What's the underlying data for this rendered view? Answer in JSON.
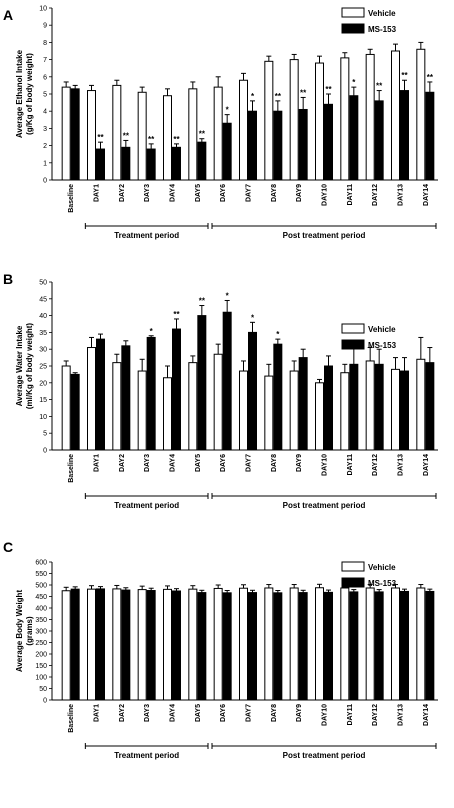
{
  "chart_data": [
    {
      "type": "bar",
      "panel_label": "A",
      "ylabel": "Average Ethanol Intake (g/Kg of body weight)",
      "ylim": [
        0,
        10
      ],
      "yticks": [
        0,
        1,
        2,
        3,
        4,
        5,
        6,
        7,
        8,
        9,
        10
      ],
      "categories": [
        "Baseline",
        "DAY1",
        "DAY2",
        "DAY3",
        "DAY4",
        "DAY5",
        "DAY6",
        "DAY7",
        "DAY8",
        "DAY9",
        "DAY10",
        "DAY11",
        "DAY12",
        "DAY13",
        "DAY14"
      ],
      "legend_position": "top-right",
      "series": [
        {
          "name": "Vehicle",
          "color": "#ffffff",
          "values": [
            5.4,
            5.2,
            5.5,
            5.1,
            4.9,
            5.3,
            5.4,
            5.8,
            6.9,
            7.0,
            6.8,
            7.1,
            7.3,
            7.5,
            7.6
          ],
          "errors": [
            0.3,
            0.3,
            0.3,
            0.3,
            0.4,
            0.4,
            0.6,
            0.4,
            0.3,
            0.3,
            0.4,
            0.3,
            0.3,
            0.4,
            0.4
          ],
          "stars": [
            "",
            "",
            "",
            "",
            "",
            "",
            "",
            "",
            "",
            "",
            "",
            "",
            "",
            "",
            ""
          ]
        },
        {
          "name": "MS-153",
          "color": "#000000",
          "values": [
            5.3,
            1.8,
            1.9,
            1.8,
            1.9,
            2.2,
            3.3,
            4.0,
            4.0,
            4.1,
            4.4,
            4.9,
            4.6,
            5.2,
            5.1
          ],
          "errors": [
            0.2,
            0.4,
            0.4,
            0.3,
            0.2,
            0.2,
            0.5,
            0.6,
            0.6,
            0.7,
            0.6,
            0.5,
            0.6,
            0.6,
            0.6
          ],
          "stars": [
            "",
            "**",
            "**",
            "**",
            "**",
            "**",
            "*",
            "*",
            "**",
            "**",
            "**",
            "*",
            "**",
            "**",
            "**"
          ]
        }
      ],
      "periods": [
        {
          "label": "Treatment period",
          "from": 1,
          "to": 5
        },
        {
          "label": "Post treatment period",
          "from": 6,
          "to": 14
        }
      ]
    },
    {
      "type": "bar",
      "panel_label": "B",
      "ylabel": "Average Water Intake (ml/Kg of body weight)",
      "ylim": [
        0,
        50
      ],
      "yticks": [
        0,
        5,
        10,
        15,
        20,
        25,
        30,
        35,
        40,
        45,
        50
      ],
      "categories": [
        "Baseline",
        "DAY1",
        "DAY2",
        "DAY3",
        "DAY4",
        "DAY5",
        "DAY6",
        "DAY7",
        "DAY8",
        "DAY9",
        "DAY10",
        "DAY11",
        "DAY12",
        "DAY13",
        "DAY14"
      ],
      "legend_position": "top-right",
      "series": [
        {
          "name": "Vehicle",
          "color": "#ffffff",
          "values": [
            25,
            30.5,
            26,
            23.5,
            21.5,
            26,
            28.5,
            23.5,
            22,
            23.5,
            20,
            23,
            26.5,
            24,
            27
          ],
          "errors": [
            1.5,
            3,
            2.5,
            3.5,
            3.5,
            2,
            3,
            3,
            3.5,
            3,
            1,
            2.5,
            4,
            3.5,
            6.5
          ],
          "stars": [
            "",
            "",
            "",
            "",
            "",
            "",
            "",
            "",
            "",
            "",
            "",
            "",
            "",
            "",
            ""
          ]
        },
        {
          "name": "MS-153",
          "color": "#000000",
          "values": [
            22.5,
            33,
            31,
            33.5,
            36,
            40,
            41,
            35,
            31.5,
            27.5,
            25,
            25.5,
            25.5,
            23.5,
            26
          ],
          "errors": [
            0.5,
            1.5,
            1.5,
            0.5,
            3,
            3,
            3.5,
            3,
            1.5,
            2.5,
            3,
            5,
            4.5,
            4,
            4.5
          ],
          "stars": [
            "",
            "",
            "",
            "*",
            "**",
            "**",
            "*",
            "*",
            "*",
            "",
            "",
            "",
            "",
            "",
            ""
          ]
        }
      ],
      "periods": [
        {
          "label": "Treatment period",
          "from": 1,
          "to": 5
        },
        {
          "label": "Post treatment period",
          "from": 6,
          "to": 14
        }
      ]
    },
    {
      "type": "bar",
      "panel_label": "C",
      "ylabel": "Average Body Weight (grams)",
      "ylim": [
        0,
        600
      ],
      "yticks": [
        0,
        50,
        100,
        150,
        200,
        250,
        300,
        350,
        400,
        450,
        500,
        550,
        600
      ],
      "categories": [
        "Baseline",
        "DAY1",
        "DAY2",
        "DAY3",
        "DAY4",
        "DAY5",
        "DAY6",
        "DAY7",
        "DAY8",
        "DAY9",
        "DAY10",
        "DAY11",
        "DAY12",
        "DAY13",
        "DAY14"
      ],
      "legend_position": "top-right",
      "series": [
        {
          "name": "Vehicle",
          "color": "#ffffff",
          "values": [
            475,
            482,
            483,
            480,
            481,
            482,
            485,
            486,
            487,
            487,
            488,
            487,
            487,
            487,
            487
          ],
          "errors": [
            15,
            15,
            15,
            15,
            15,
            15,
            15,
            15,
            15,
            15,
            15,
            15,
            15,
            15,
            15
          ],
          "stars": [
            "",
            "",
            "",
            "",
            "",
            "",
            "",
            "",
            "",
            "",
            "",
            "",
            "",
            "",
            ""
          ]
        },
        {
          "name": "MS-153",
          "color": "#000000",
          "values": [
            482,
            483,
            478,
            476,
            474,
            467,
            466,
            467,
            466,
            467,
            468,
            470,
            470,
            472,
            472
          ],
          "errors": [
            10,
            10,
            10,
            10,
            10,
            10,
            10,
            10,
            10,
            10,
            10,
            10,
            10,
            10,
            10
          ],
          "stars": [
            "",
            "",
            "",
            "",
            "",
            "",
            "",
            "",
            "",
            "",
            "",
            "",
            "",
            "",
            ""
          ]
        }
      ],
      "periods": [
        {
          "label": "Treatment period",
          "from": 1,
          "to": 5
        },
        {
          "label": "Post treatment period",
          "from": 6,
          "to": 14
        }
      ]
    }
  ]
}
